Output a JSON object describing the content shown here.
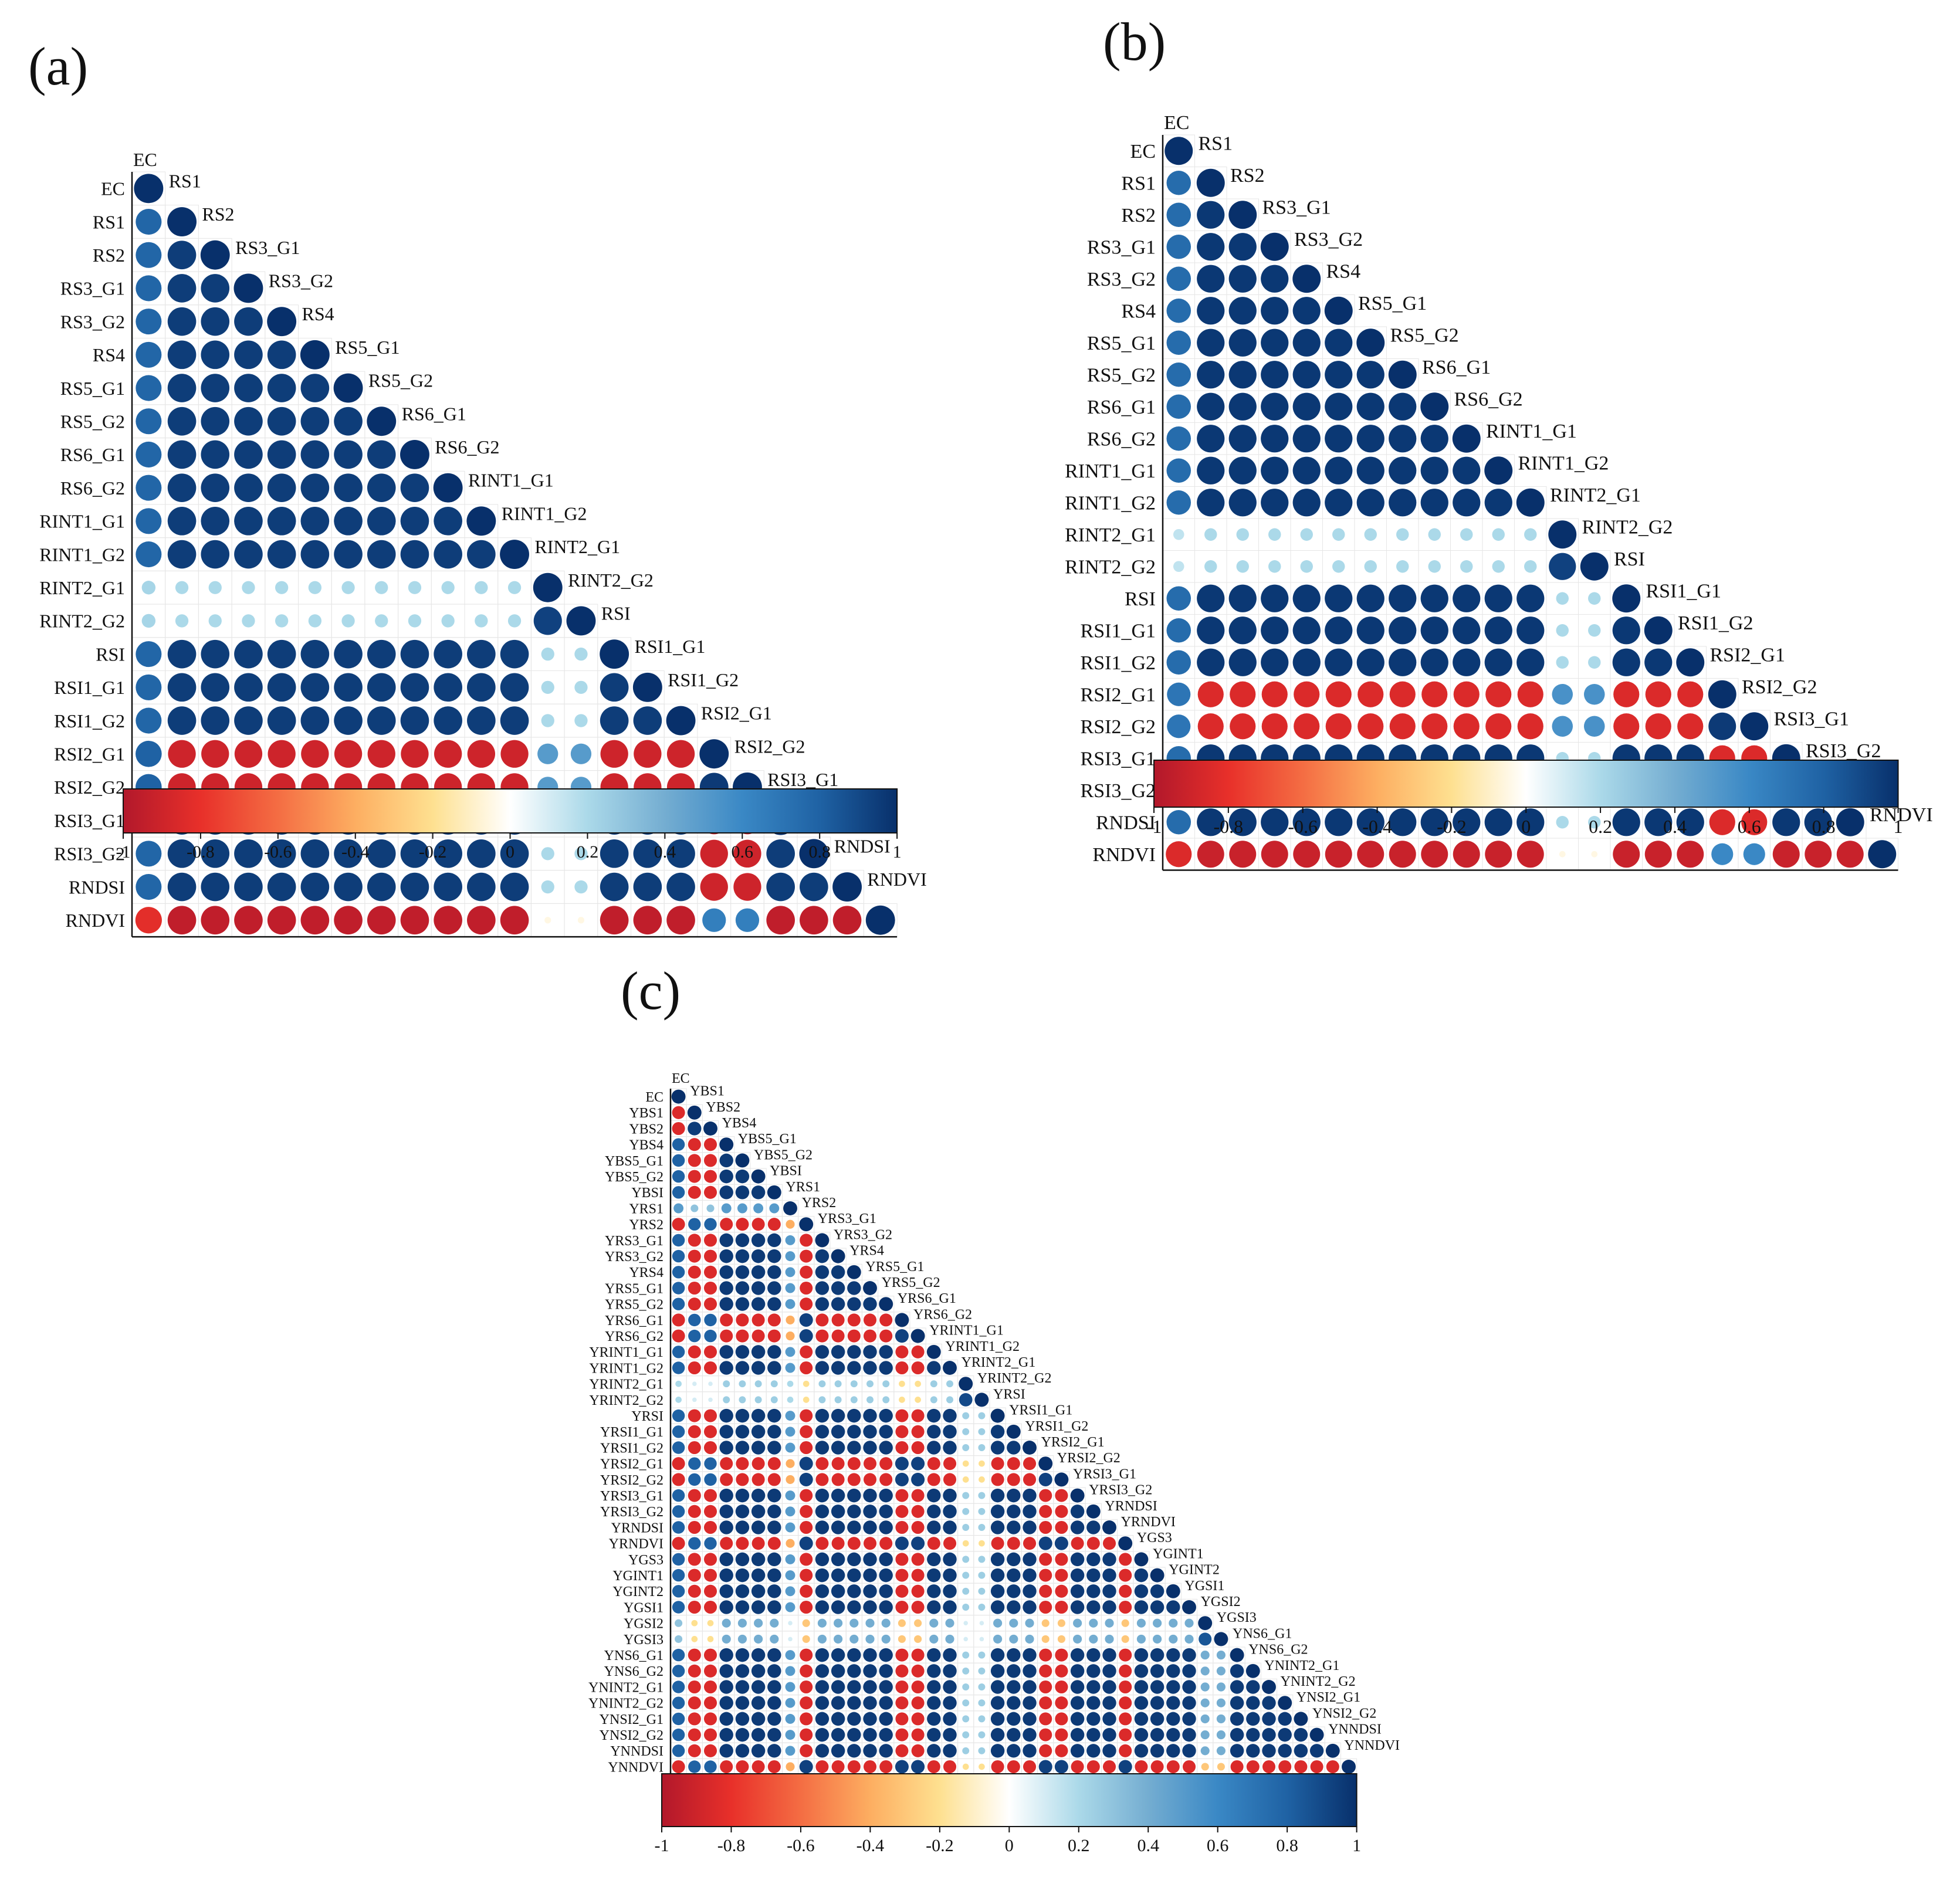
{
  "colorscale": {
    "stops": [
      "#67001f",
      "#b2182b",
      "#d6604d",
      "#f4a582",
      "#fddbc7",
      "#f7f7f7",
      "#d1e5f0",
      "#92c5de",
      "#4393c3",
      "#2166ac",
      "#053061"
    ],
    "display_stops": [
      "#b2182b",
      "#e8302a",
      "#f46d43",
      "#fdae61",
      "#fee090",
      "#ffffff",
      "#abd9e9",
      "#74add1",
      "#3a88c5",
      "#1f62a4",
      "#08306b"
    ]
  },
  "chart_data": [
    {
      "type": "correlogram",
      "panel_label": "(a)",
      "labels": [
        "EC",
        "RS1",
        "RS2",
        "RS3_G1",
        "RS3_G2",
        "RS4",
        "RS5_G1",
        "RS5_G2",
        "RS6_G1",
        "RS6_G2",
        "RINT1_G1",
        "RINT1_G2",
        "RINT2_G1",
        "RINT2_G2",
        "RSI",
        "RSI1_G1",
        "RSI1_G2",
        "RSI2_G1",
        "RSI2_G2",
        "RSI3_G1",
        "RSI3_G2",
        "RNDSI",
        "RNDVI"
      ],
      "groups": [
        0,
        1,
        1,
        1,
        1,
        1,
        1,
        1,
        1,
        1,
        1,
        1,
        2,
        2,
        1,
        1,
        1,
        3,
        3,
        1,
        1,
        1,
        4
      ],
      "group_corr": [
        [
          1.0,
          0.78,
          0.22,
          0.8,
          -0.82
        ],
        [
          0.78,
          0.95,
          0.2,
          -0.9,
          -0.95
        ],
        [
          0.22,
          0.2,
          0.93,
          0.5,
          -0.05
        ],
        [
          0.8,
          -0.9,
          0.5,
          0.96,
          0.65
        ],
        [
          -0.82,
          -0.95,
          -0.05,
          0.65,
          1.0
        ]
      ],
      "colorbar": {
        "ticks": [
          "-1",
          "-0.8",
          "-0.6",
          "-0.4",
          "-0.2",
          "0",
          "0.2",
          "0.4",
          "0.6",
          "0.8",
          "1"
        ],
        "range": [
          -1,
          1
        ]
      }
    },
    {
      "type": "correlogram",
      "panel_label": "(b)",
      "labels": [
        "EC",
        "RS1",
        "RS2",
        "RS3_G1",
        "RS3_G2",
        "RS4",
        "RS5_G1",
        "RS5_G2",
        "RS6_G1",
        "RS6_G2",
        "RINT1_G1",
        "RINT1_G2",
        "RINT2_G1",
        "RINT2_G2",
        "RSI",
        "RSI1_G1",
        "RSI1_G2",
        "RSI2_G1",
        "RSI2_G2",
        "RSI3_G1",
        "RSI3_G2",
        "RNDSI",
        "RNDVI"
      ],
      "groups": [
        0,
        1,
        1,
        1,
        1,
        1,
        1,
        1,
        1,
        1,
        1,
        1,
        2,
        2,
        1,
        1,
        1,
        3,
        3,
        1,
        1,
        1,
        4
      ],
      "group_corr": [
        [
          1.0,
          0.75,
          0.15,
          0.7,
          -0.85
        ],
        [
          0.75,
          0.97,
          0.2,
          -0.85,
          -0.92
        ],
        [
          0.15,
          0.2,
          0.93,
          0.55,
          -0.05
        ],
        [
          0.7,
          -0.85,
          0.55,
          0.96,
          0.6
        ],
        [
          -0.85,
          -0.92,
          -0.05,
          0.6,
          1.0
        ]
      ],
      "colorbar": {
        "ticks": [
          "-1",
          "-0.8",
          "-0.6",
          "-0.4",
          "-0.2",
          "0",
          "0.2",
          "0.4",
          "0.6",
          "0.8",
          "1"
        ],
        "range": [
          -1,
          1
        ]
      }
    },
    {
      "type": "correlogram",
      "panel_label": "(c)",
      "labels": [
        "EC",
        "YBS1",
        "YBS2",
        "YBS4",
        "YBS5_G1",
        "YBS5_G2",
        "YBSI",
        "YRS1",
        "YRS2",
        "YRS3_G1",
        "YRS3_G2",
        "YRS4",
        "YRS5_G1",
        "YRS5_G2",
        "YRS6_G1",
        "YRS6_G2",
        "YRINT1_G1",
        "YRINT1_G2",
        "YRINT2_G1",
        "YRINT2_G2",
        "YRSI",
        "YRSI1_G1",
        "YRSI1_G2",
        "YRSI2_G1",
        "YRSI2_G2",
        "YRSI3_G1",
        "YRSI3_G2",
        "YRNDSI",
        "YRNDVI",
        "YGS3",
        "YGINT1",
        "YGINT2",
        "YGSI1",
        "YGSI2",
        "YGSI3",
        "YNS6_G1",
        "YNS6_G2",
        "YNINT2_G1",
        "YNINT2_G2",
        "YNSI2_G1",
        "YNSI2_G2",
        "YNNDSI",
        "YNNDVI"
      ],
      "groups": [
        0,
        1,
        1,
        2,
        2,
        2,
        2,
        3,
        4,
        2,
        2,
        2,
        2,
        2,
        4,
        4,
        2,
        2,
        5,
        5,
        2,
        2,
        2,
        4,
        4,
        2,
        2,
        2,
        4,
        2,
        2,
        2,
        2,
        6,
        6,
        2,
        2,
        2,
        2,
        2,
        2,
        2,
        4
      ],
      "group_corr": [
        [
          1.0,
          -0.85,
          0.8,
          0.5,
          -0.85,
          0.2,
          0.3
        ],
        [
          -0.85,
          0.95,
          -0.85,
          0.3,
          0.8,
          0.1,
          -0.2
        ],
        [
          0.8,
          -0.85,
          0.96,
          0.5,
          -0.85,
          0.25,
          0.4
        ],
        [
          0.5,
          0.3,
          0.5,
          1.0,
          -0.4,
          0.2,
          0.1
        ],
        [
          -0.85,
          0.8,
          -0.85,
          -0.4,
          0.93,
          -0.2,
          -0.3
        ],
        [
          0.2,
          0.1,
          0.25,
          0.2,
          -0.2,
          0.9,
          0.1
        ],
        [
          0.3,
          -0.2,
          0.4,
          0.1,
          -0.3,
          0.1,
          0.85
        ]
      ],
      "colorbar": {
        "ticks": [
          "-1",
          "-0.8",
          "-0.6",
          "-0.4",
          "-0.2",
          "0",
          "0.2",
          "0.4",
          "0.6",
          "0.8",
          "1"
        ],
        "range": [
          -1,
          1
        ]
      }
    }
  ]
}
